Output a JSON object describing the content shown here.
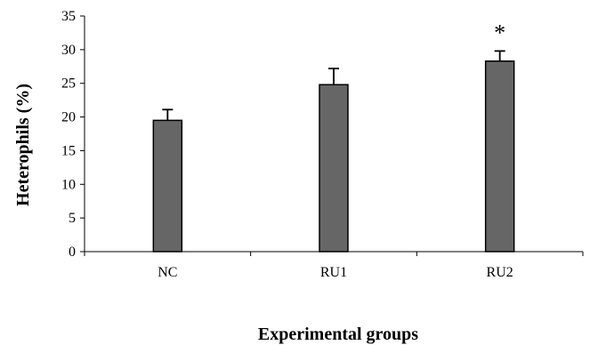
{
  "chart_data": {
    "type": "bar",
    "title": "",
    "xlabel": "Experimental groups",
    "ylabel": "Heterophils (%)",
    "categories": [
      "NC",
      "RU1",
      "RU2"
    ],
    "values": [
      19.5,
      24.8,
      28.3
    ],
    "error_upper": [
      1.6,
      2.4,
      1.5
    ],
    "annotations": [
      "",
      "",
      "*"
    ],
    "ylim": [
      0,
      35
    ],
    "yticks": [
      0,
      5,
      10,
      15,
      20,
      25,
      30,
      35
    ],
    "ytick_labels": [
      "0",
      "5",
      "10",
      "15",
      "20",
      "25",
      "30",
      "35"
    ],
    "grid": false,
    "legend": "none",
    "bar_color": "#666666",
    "bar_edge_color": "#000000"
  }
}
